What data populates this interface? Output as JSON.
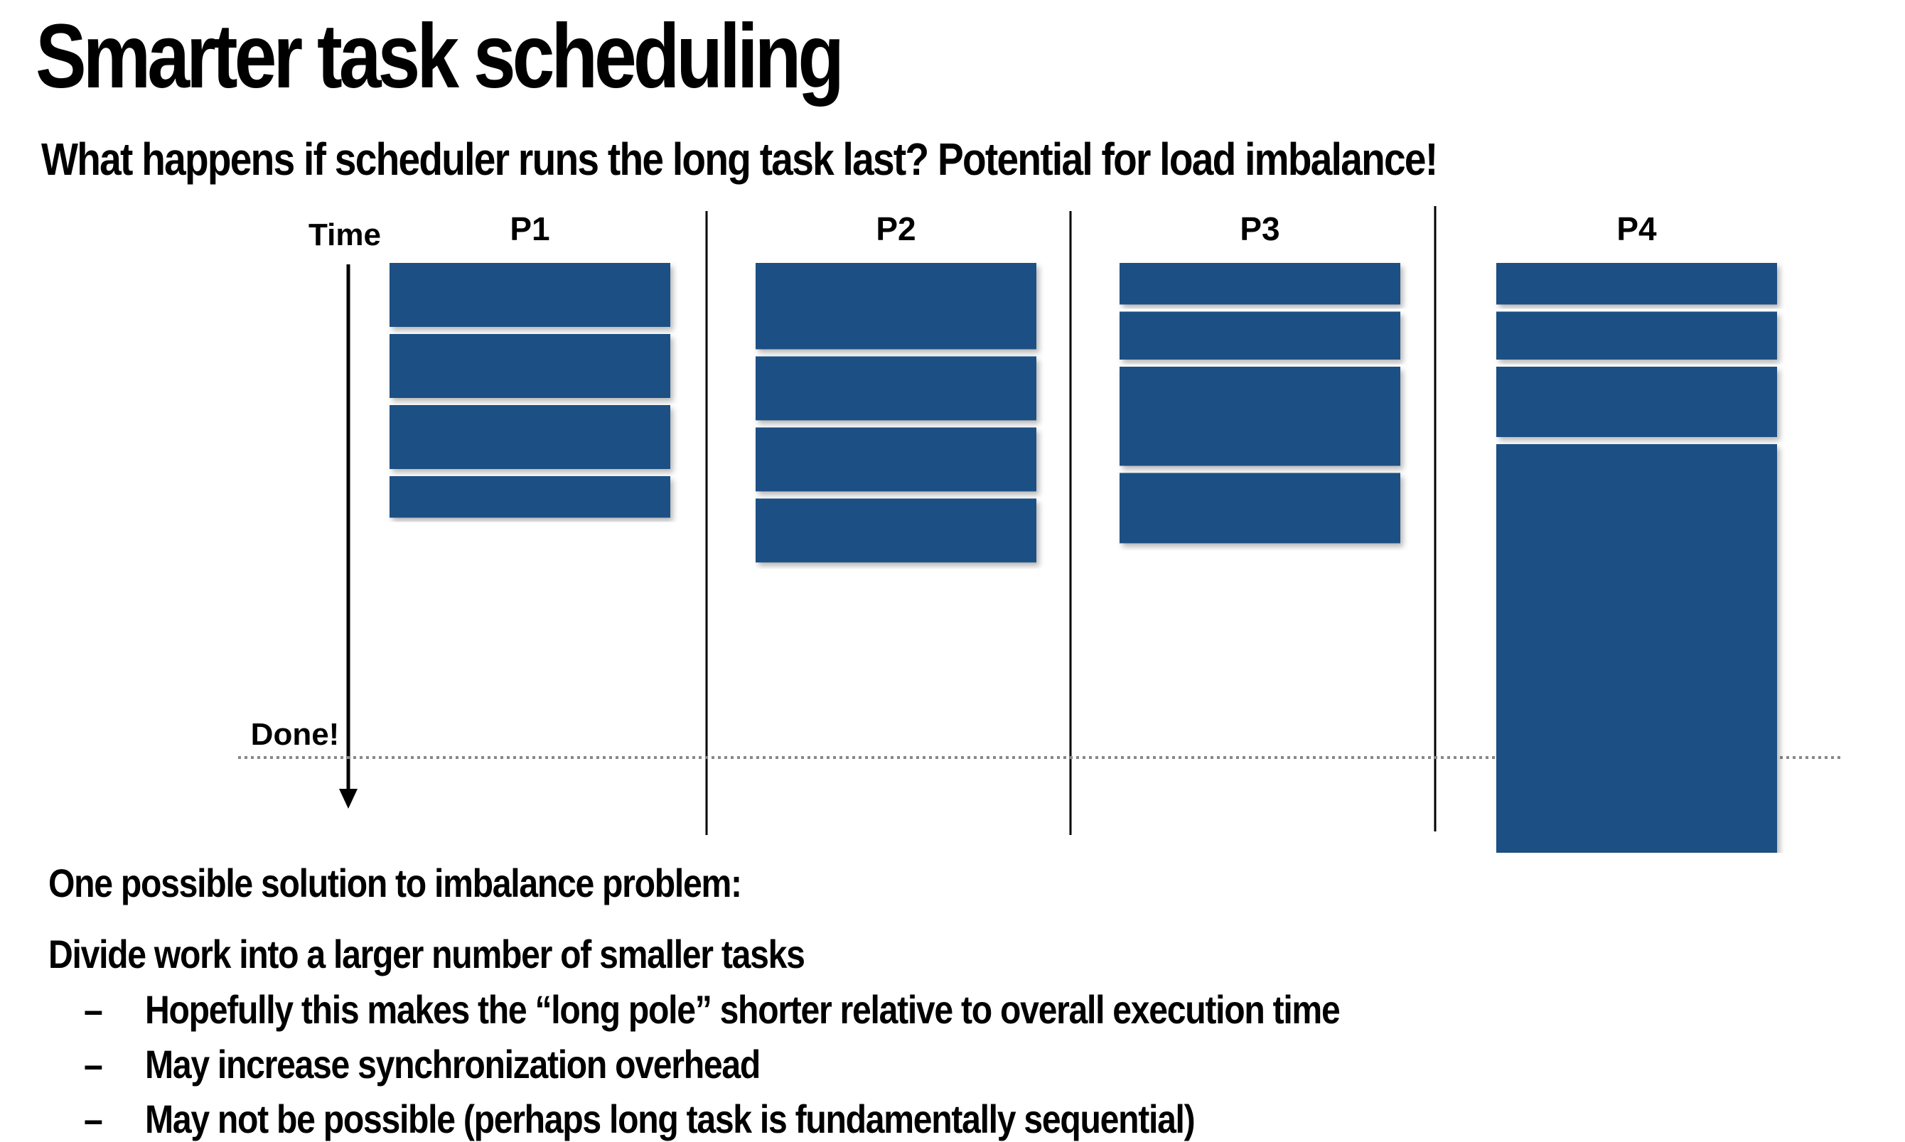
{
  "title": "Smarter task scheduling",
  "subtitle": "What happens if scheduler runs the long task last?  Potential for load imbalance!",
  "diagram": {
    "time_label": "Time",
    "done_label": "Done!",
    "task_color": "#1a4f84",
    "processors": [
      {
        "label": "P1",
        "tasks": [
          1.0,
          1.0,
          1.0,
          0.65
        ]
      },
      {
        "label": "P2",
        "tasks": [
          1.35,
          1.0,
          1.0,
          1.0
        ]
      },
      {
        "label": "P3",
        "tasks": [
          0.65,
          0.75,
          1.55,
          1.1
        ]
      },
      {
        "label": "P4",
        "tasks": [
          0.65,
          0.75,
          1.1,
          6.4
        ]
      }
    ]
  },
  "solution": {
    "heading": "One possible solution to imbalance problem:",
    "point": "Divide work into a larger number of smaller tasks",
    "dash": "–",
    "subpoints": [
      "Hopefully this makes the “long pole” shorter relative to overall execution time",
      "May increase synchronization overhead",
      "May not be possible (perhaps long task is fundamentally sequential)"
    ]
  }
}
